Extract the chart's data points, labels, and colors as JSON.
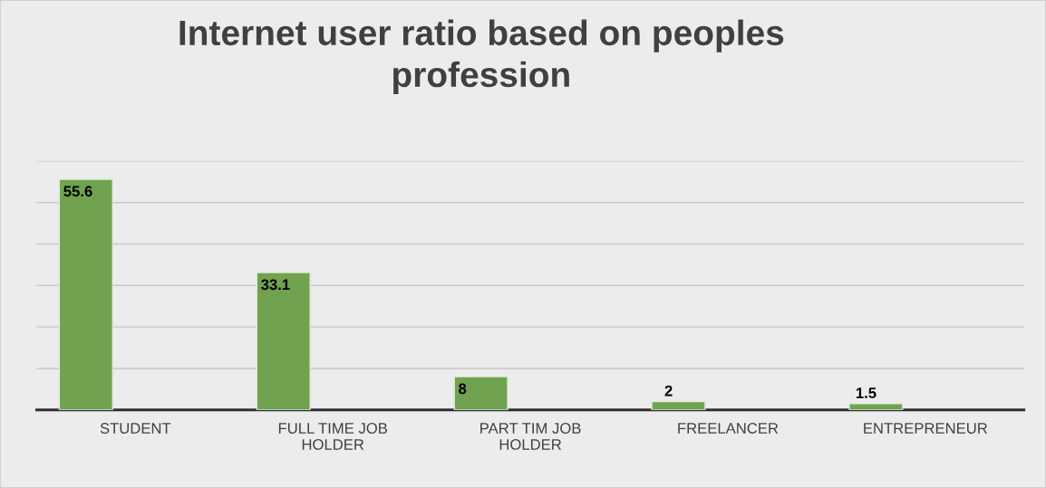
{
  "chart_data": {
    "type": "bar",
    "title": "Internet user ratio based on peoples\nprofession",
    "categories": [
      "STUDENT",
      "FULL TIME JOB\nHOLDER",
      "PART TIM JOB\nHOLDER",
      "FREELANCER",
      "ENTREPRENEUR"
    ],
    "values": [
      55.6,
      33.1,
      8,
      2,
      1.5
    ],
    "color": "#70a24f",
    "ylim": [
      0,
      60
    ],
    "yticks": [
      {
        "value": 0,
        "label": null
      },
      {
        "value": 10,
        "label": null
      },
      {
        "value": 20,
        "label": null
      },
      {
        "value": 30,
        "label": null
      },
      {
        "value": 40,
        "label": null
      },
      {
        "value": 50,
        "label": null
      },
      {
        "value": 60,
        "label": null
      }
    ],
    "grid": "y",
    "tick_labels": "x",
    "data_labels": true,
    "legend": false
  }
}
